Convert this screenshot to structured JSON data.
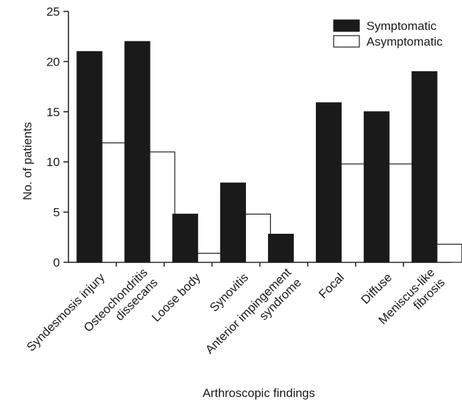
{
  "chart_data": {
    "type": "bar",
    "xlabel": "Arthroscopic findings",
    "ylabel": "No. of patients",
    "ylim": [
      0,
      25
    ],
    "yticks": [
      "0",
      "5",
      "10",
      "15",
      "20",
      "25"
    ],
    "categories": [
      [
        "Syndesmosis injury"
      ],
      [
        "Osteochondritis",
        "dissecans"
      ],
      [
        "Loose body"
      ],
      [
        "Synovitis"
      ],
      [
        "Anterior impingement",
        "syndrome"
      ],
      [
        "Focal"
      ],
      [
        "Diffuse"
      ],
      [
        "Meniscus-like",
        "fibrosis"
      ]
    ],
    "series": [
      {
        "name": "Symptomatic",
        "color": "#1a1a1a",
        "values": [
          21,
          22,
          4.8,
          7.9,
          2.8,
          15.9,
          15,
          19
        ]
      },
      {
        "name": "Asymptomatic",
        "color": "#ffffff",
        "values": [
          11.9,
          11,
          0.9,
          4.8,
          0,
          9.8,
          9.8,
          1.8
        ]
      }
    ],
    "legend_position": "top-right",
    "grid": false
  }
}
